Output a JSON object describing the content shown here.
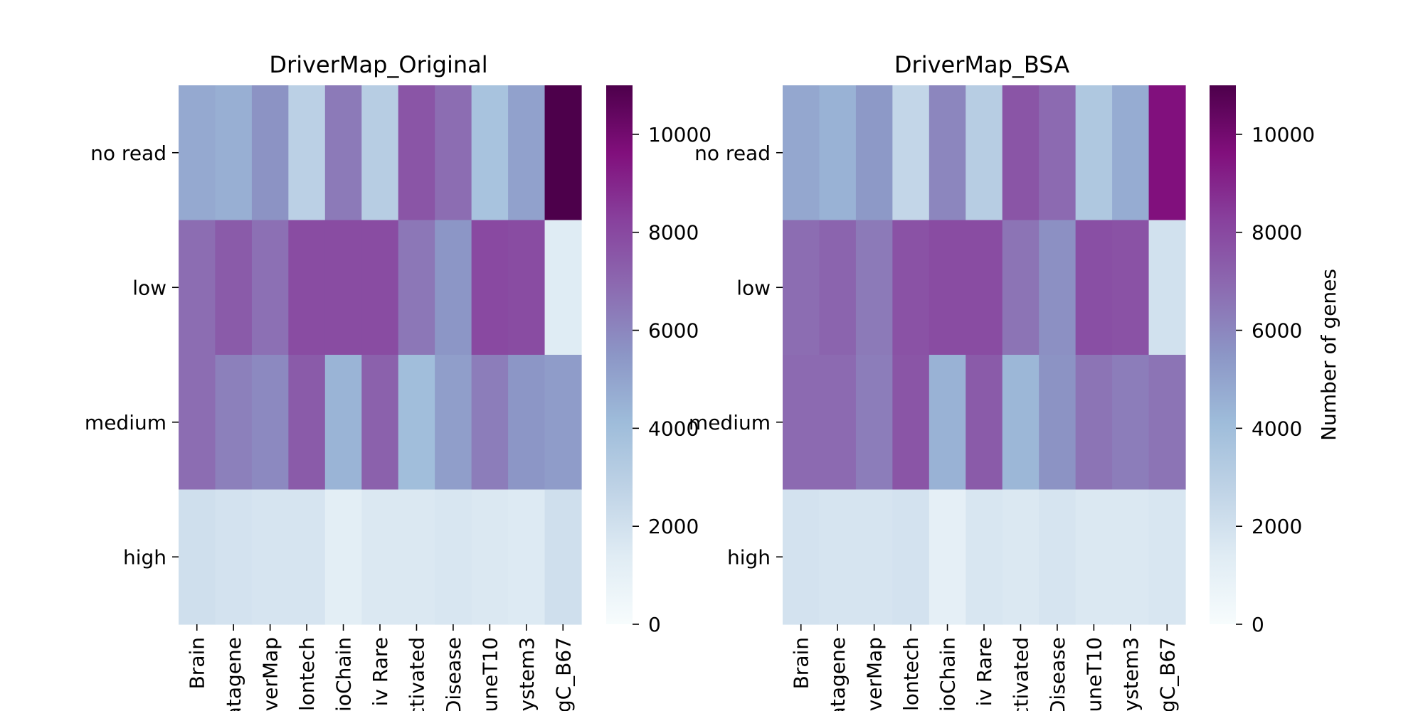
{
  "chart_data": [
    {
      "type": "heatmap",
      "title": "DriverMap_Original",
      "rows": [
        "no read",
        "low",
        "medium",
        "high"
      ],
      "columns": [
        "Brain",
        "atagene",
        "verMap",
        "lontech",
        "ioChain",
        "iv Rare",
        "ctivated",
        "Disease",
        "uneT10",
        "ystem3",
        "gC_B67"
      ],
      "values": [
        [
          4800,
          4600,
          5600,
          2900,
          6400,
          3100,
          7600,
          6800,
          3700,
          5100,
          11000
        ],
        [
          6800,
          7400,
          6700,
          7900,
          7900,
          7900,
          6500,
          5500,
          8000,
          7900,
          1400
        ],
        [
          6800,
          6200,
          5900,
          7400,
          4400,
          7200,
          4000,
          5200,
          6300,
          5500,
          5300
        ],
        [
          2100,
          1900,
          1800,
          1800,
          1200,
          1600,
          1600,
          1700,
          1600,
          1500,
          2100
        ]
      ],
      "colorbar": {
        "min": 0,
        "max": 11000,
        "ticks": [
          "0",
          "2000",
          "4000",
          "6000",
          "8000",
          "10000"
        ],
        "label": ""
      }
    },
    {
      "type": "heatmap",
      "title": "DriverMap_BSA",
      "rows": [
        "no read",
        "low",
        "medium",
        "high"
      ],
      "columns": [
        "Brain",
        "atagene",
        "verMap",
        "lontech",
        "ioChain",
        "iv Rare",
        "ctivated",
        "Disease",
        "uneT10",
        "ystem3",
        "gC_B67"
      ],
      "values": [
        [
          4900,
          4500,
          5400,
          2600,
          6000,
          3100,
          7600,
          6900,
          3400,
          4700,
          9600
        ],
        [
          6800,
          7100,
          6400,
          7700,
          7900,
          7900,
          6600,
          5700,
          7800,
          7700,
          2000
        ],
        [
          6900,
          6900,
          6300,
          7600,
          4500,
          7400,
          4300,
          5600,
          6600,
          6300,
          6600
        ],
        [
          1900,
          1800,
          1800,
          1900,
          1100,
          1700,
          1600,
          1800,
          1600,
          1600,
          1700
        ]
      ],
      "colorbar": {
        "min": 0,
        "max": 11000,
        "ticks": [
          "0",
          "2000",
          "4000",
          "6000",
          "8000",
          "10000"
        ],
        "label": "Number of genes"
      }
    }
  ]
}
